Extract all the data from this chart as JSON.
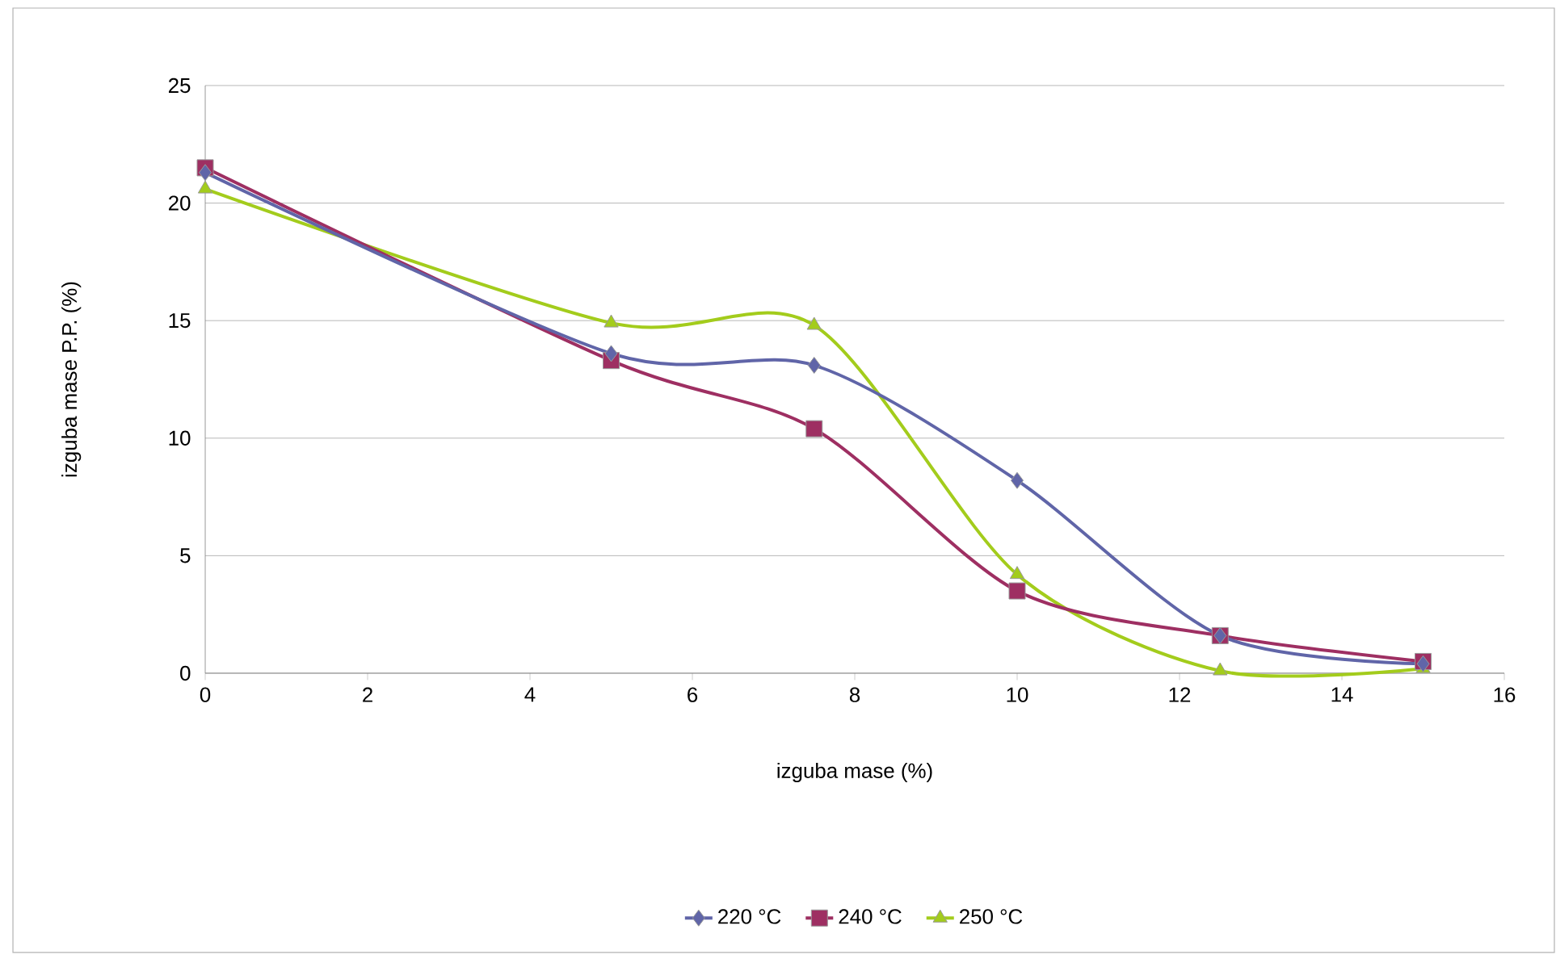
{
  "chart_data": {
    "type": "line",
    "xlabel": "izguba mase (%)",
    "ylabel": "izguba mase P.P. (%)",
    "x": [
      0,
      5,
      7.5,
      10,
      12.5,
      15
    ],
    "series": [
      {
        "name": "220 °C",
        "color": "#6065a8",
        "marker": "diamond",
        "values": [
          21.3,
          13.6,
          13.1,
          8.2,
          1.6,
          0.4
        ]
      },
      {
        "name": "240 °C",
        "color": "#9e2f62",
        "marker": "square",
        "values": [
          21.5,
          13.3,
          10.4,
          3.5,
          1.6,
          0.5
        ]
      },
      {
        "name": "250 °C",
        "color": "#a3cc1c",
        "marker": "triangle",
        "values": [
          20.6,
          14.9,
          14.8,
          4.2,
          0.1,
          0.2
        ]
      }
    ],
    "xlim": [
      0,
      16
    ],
    "xticks": [
      0,
      2,
      4,
      6,
      8,
      10,
      12,
      14,
      16
    ],
    "ylim": [
      0,
      25
    ],
    "yticks": [
      0,
      5,
      10,
      15,
      20,
      25
    ],
    "grid": "y",
    "legend": "bottom",
    "line_style": "solid"
  }
}
